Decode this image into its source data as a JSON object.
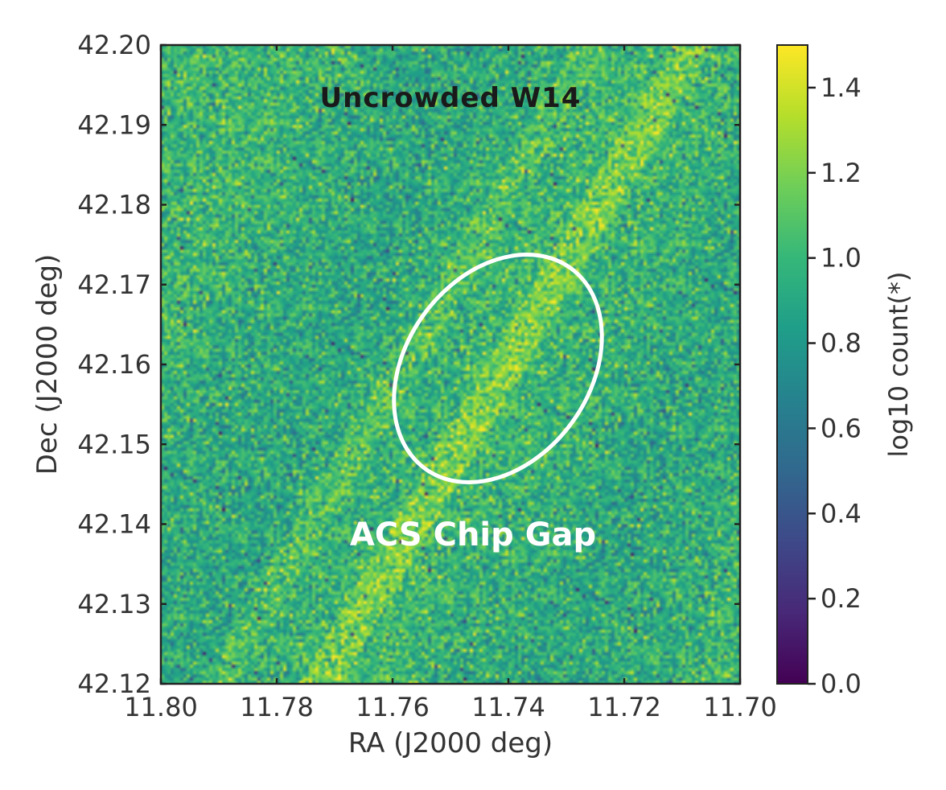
{
  "chart_data": {
    "type": "heatmap",
    "title": "Uncrowded W14",
    "xlabel": "RA (J2000 deg)",
    "ylabel": "Dec (J2000 deg)",
    "xlim": [
      11.8,
      11.7
    ],
    "ylim": [
      42.12,
      42.2
    ],
    "x_ticks": [
      "11.80",
      "11.78",
      "11.76",
      "11.74",
      "11.72",
      "11.70"
    ],
    "y_ticks": [
      "42.12",
      "42.13",
      "42.14",
      "42.15",
      "42.16",
      "42.17",
      "42.18",
      "42.19",
      "42.20"
    ],
    "colorbar": {
      "label": "log10 count(*)",
      "range": [
        0.0,
        1.5
      ],
      "ticks": [
        "0.0",
        "0.2",
        "0.4",
        "0.6",
        "0.8",
        "1.0",
        "1.2",
        "1.4"
      ],
      "colormap": "viridis"
    },
    "annotation": {
      "text": "ACS Chip Gap",
      "shape": "ellipse",
      "center": {
        "ra": 11.746,
        "dec": 42.16
      },
      "color": "#ffffff"
    },
    "typical_value": 0.95,
    "image_grid": {
      "nx": 180,
      "ny": 200
    }
  },
  "colors": {
    "axis": "#222222",
    "text": "#333333",
    "viridis": [
      "#440154",
      "#482878",
      "#3e4989",
      "#31688e",
      "#26828e",
      "#1f9e89",
      "#35b779",
      "#6ece58",
      "#b5de2b",
      "#fde725"
    ]
  }
}
